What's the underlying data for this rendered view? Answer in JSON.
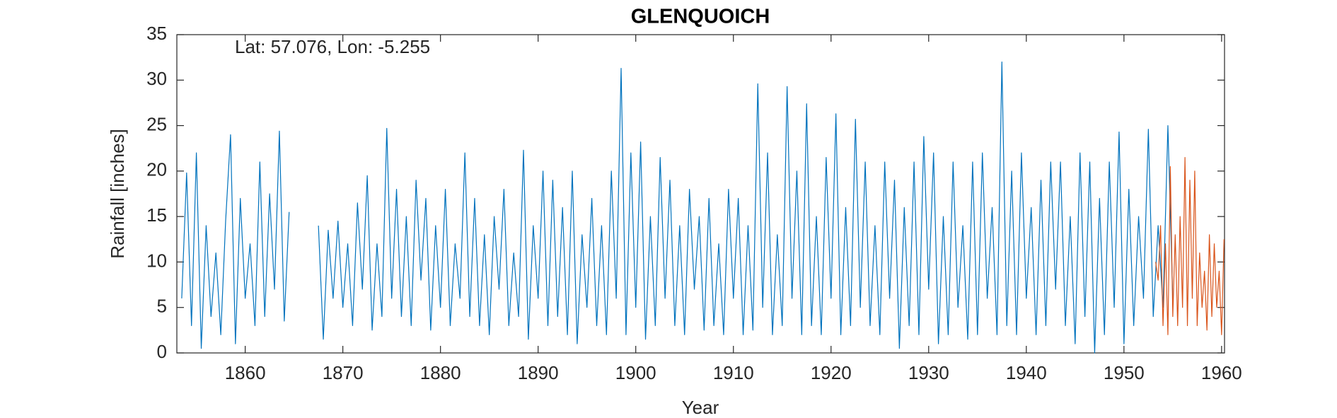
{
  "chart_data": {
    "type": "line",
    "title": "GLENQUOICH",
    "annotation": "Lat: 57.076, Lon: -5.255",
    "x_label": "Year",
    "y_label": "Rainfall [inches]",
    "xlim": [
      1853,
      1960.3
    ],
    "ylim": [
      0,
      35
    ],
    "xticks": [
      1860,
      1870,
      1880,
      1890,
      1900,
      1910,
      1920,
      1930,
      1940,
      1950,
      1960
    ],
    "yticks": [
      0,
      5,
      10,
      15,
      20,
      25,
      30,
      35
    ],
    "grid": false,
    "series": [
      {
        "color": "#0072bd",
        "x": [
          1853.5,
          1854,
          1854.5,
          1855,
          1855.5,
          1856,
          1856.5,
          1857,
          1857.5,
          1858,
          1858.5,
          1859,
          1859.5,
          1860,
          1860.5,
          1861,
          1861.5,
          1862,
          1862.5,
          1863,
          1863.5,
          1864,
          1864.5,
          1865,
          1865.5,
          1866,
          1866.5,
          1867,
          1867.5,
          1868,
          1868.5,
          1869,
          1869.5,
          1870,
          1870.5,
          1871,
          1871.5,
          1872,
          1872.5,
          1873,
          1873.5,
          1874,
          1874.5,
          1875,
          1875.5,
          1876,
          1876.5,
          1877,
          1877.5,
          1878,
          1878.5,
          1879,
          1879.5,
          1880,
          1880.5,
          1881,
          1881.5,
          1882,
          1882.5,
          1883,
          1883.5,
          1884,
          1884.5,
          1885,
          1885.5,
          1886,
          1886.5,
          1887,
          1887.5,
          1888,
          1888.5,
          1889,
          1889.5,
          1890,
          1890.5,
          1891,
          1891.5,
          1892,
          1892.5,
          1893,
          1893.5,
          1894,
          1894.5,
          1895,
          1895.5,
          1896,
          1896.5,
          1897,
          1897.5,
          1898,
          1898.5,
          1899,
          1899.5,
          1900,
          1900.5,
          1901,
          1901.5,
          1902,
          1902.5,
          1903,
          1903.5,
          1904,
          1904.5,
          1905,
          1905.5,
          1906,
          1906.5,
          1907,
          1907.5,
          1908,
          1908.5,
          1909,
          1909.5,
          1910,
          1910.5,
          1911,
          1911.5,
          1912,
          1912.5,
          1913,
          1913.5,
          1914,
          1914.5,
          1915,
          1915.5,
          1916,
          1916.5,
          1917,
          1917.5,
          1918,
          1918.5,
          1919,
          1919.5,
          1920,
          1920.5,
          1921,
          1921.5,
          1922,
          1922.5,
          1923,
          1923.5,
          1924,
          1924.5,
          1925,
          1925.5,
          1926,
          1926.5,
          1927,
          1927.5,
          1928,
          1928.5,
          1929,
          1929.5,
          1930,
          1930.5,
          1931,
          1931.5,
          1932,
          1932.5,
          1933,
          1933.5,
          1934,
          1934.5,
          1935,
          1935.5,
          1936,
          1936.5,
          1937,
          1937.5,
          1938,
          1938.5,
          1939,
          1939.5,
          1940,
          1940.5,
          1941,
          1941.5,
          1942,
          1942.5,
          1943,
          1943.5,
          1944,
          1944.5,
          1945,
          1945.5,
          1946,
          1946.5,
          1947,
          1947.5,
          1948,
          1948.5,
          1949,
          1949.5,
          1950,
          1950.5,
          1951,
          1951.5,
          1952,
          1952.5,
          1953,
          1953.5,
          1954,
          1954.5,
          1955
        ],
        "values": [
          6,
          19.8,
          3,
          22,
          0.5,
          14,
          4,
          11,
          2,
          14.6,
          24,
          1,
          17,
          6,
          12,
          3,
          21,
          4,
          17.5,
          7,
          24.4,
          3.5,
          15.5,
          null,
          null,
          null,
          null,
          null,
          14,
          1.5,
          13.5,
          6,
          14.5,
          5,
          12,
          3,
          16.5,
          7,
          19.5,
          2.5,
          12,
          4,
          24.7,
          6,
          18,
          4,
          15,
          3,
          19,
          8,
          17,
          2.5,
          14,
          5,
          18,
          3,
          12,
          6,
          22,
          4,
          17,
          3,
          13,
          2,
          15,
          7,
          18,
          3,
          11,
          4,
          22.3,
          1.5,
          14,
          6,
          20,
          3,
          19,
          4,
          16,
          2,
          20,
          1,
          13,
          5,
          17,
          3,
          14,
          2,
          20,
          6,
          31.3,
          2,
          22,
          5,
          23.2,
          1.5,
          15,
          3,
          21.5,
          6,
          19,
          3,
          14,
          2,
          18,
          7,
          15,
          2.5,
          17,
          3,
          12,
          2,
          18,
          6,
          17,
          2,
          14,
          2.5,
          29.6,
          5,
          22,
          2,
          13,
          3,
          29.3,
          6,
          20,
          2,
          27.4,
          3,
          15,
          2,
          21.5,
          6,
          26.3,
          2,
          16,
          3,
          25.7,
          5,
          21,
          3,
          14,
          2,
          21,
          6,
          19,
          0.5,
          16,
          3,
          21,
          2,
          23.8,
          7,
          22,
          1,
          15,
          2,
          21,
          5,
          14,
          1.5,
          21,
          2,
          22,
          6,
          16,
          2,
          32,
          3,
          20,
          2,
          22,
          6,
          16,
          2,
          19,
          3,
          21,
          7,
          21,
          3,
          15,
          1,
          22,
          4,
          21,
          0,
          17,
          2,
          21,
          5,
          24.3,
          1,
          18,
          3,
          15,
          6,
          24.6,
          4,
          14,
          5,
          25,
          6
        ]
      },
      {
        "color": "#d95319",
        "x": [
          1953.25,
          1953.5,
          1953.75,
          1954,
          1954.25,
          1954.5,
          1954.75,
          1955,
          1955.25,
          1955.5,
          1955.75,
          1956,
          1956.25,
          1956.5,
          1956.75,
          1957,
          1957.25,
          1957.5,
          1957.75,
          1958,
          1958.25,
          1958.5,
          1958.75,
          1959,
          1959.25,
          1959.5,
          1959.75,
          1960,
          1960.25
        ],
        "values": [
          10,
          8,
          14,
          3,
          12,
          2,
          20.5,
          4,
          13,
          3,
          15,
          5,
          21.5,
          3,
          19,
          6,
          20,
          3,
          11,
          5,
          9,
          2.5,
          13,
          4,
          12,
          5,
          9,
          2,
          12.5
        ]
      }
    ]
  }
}
